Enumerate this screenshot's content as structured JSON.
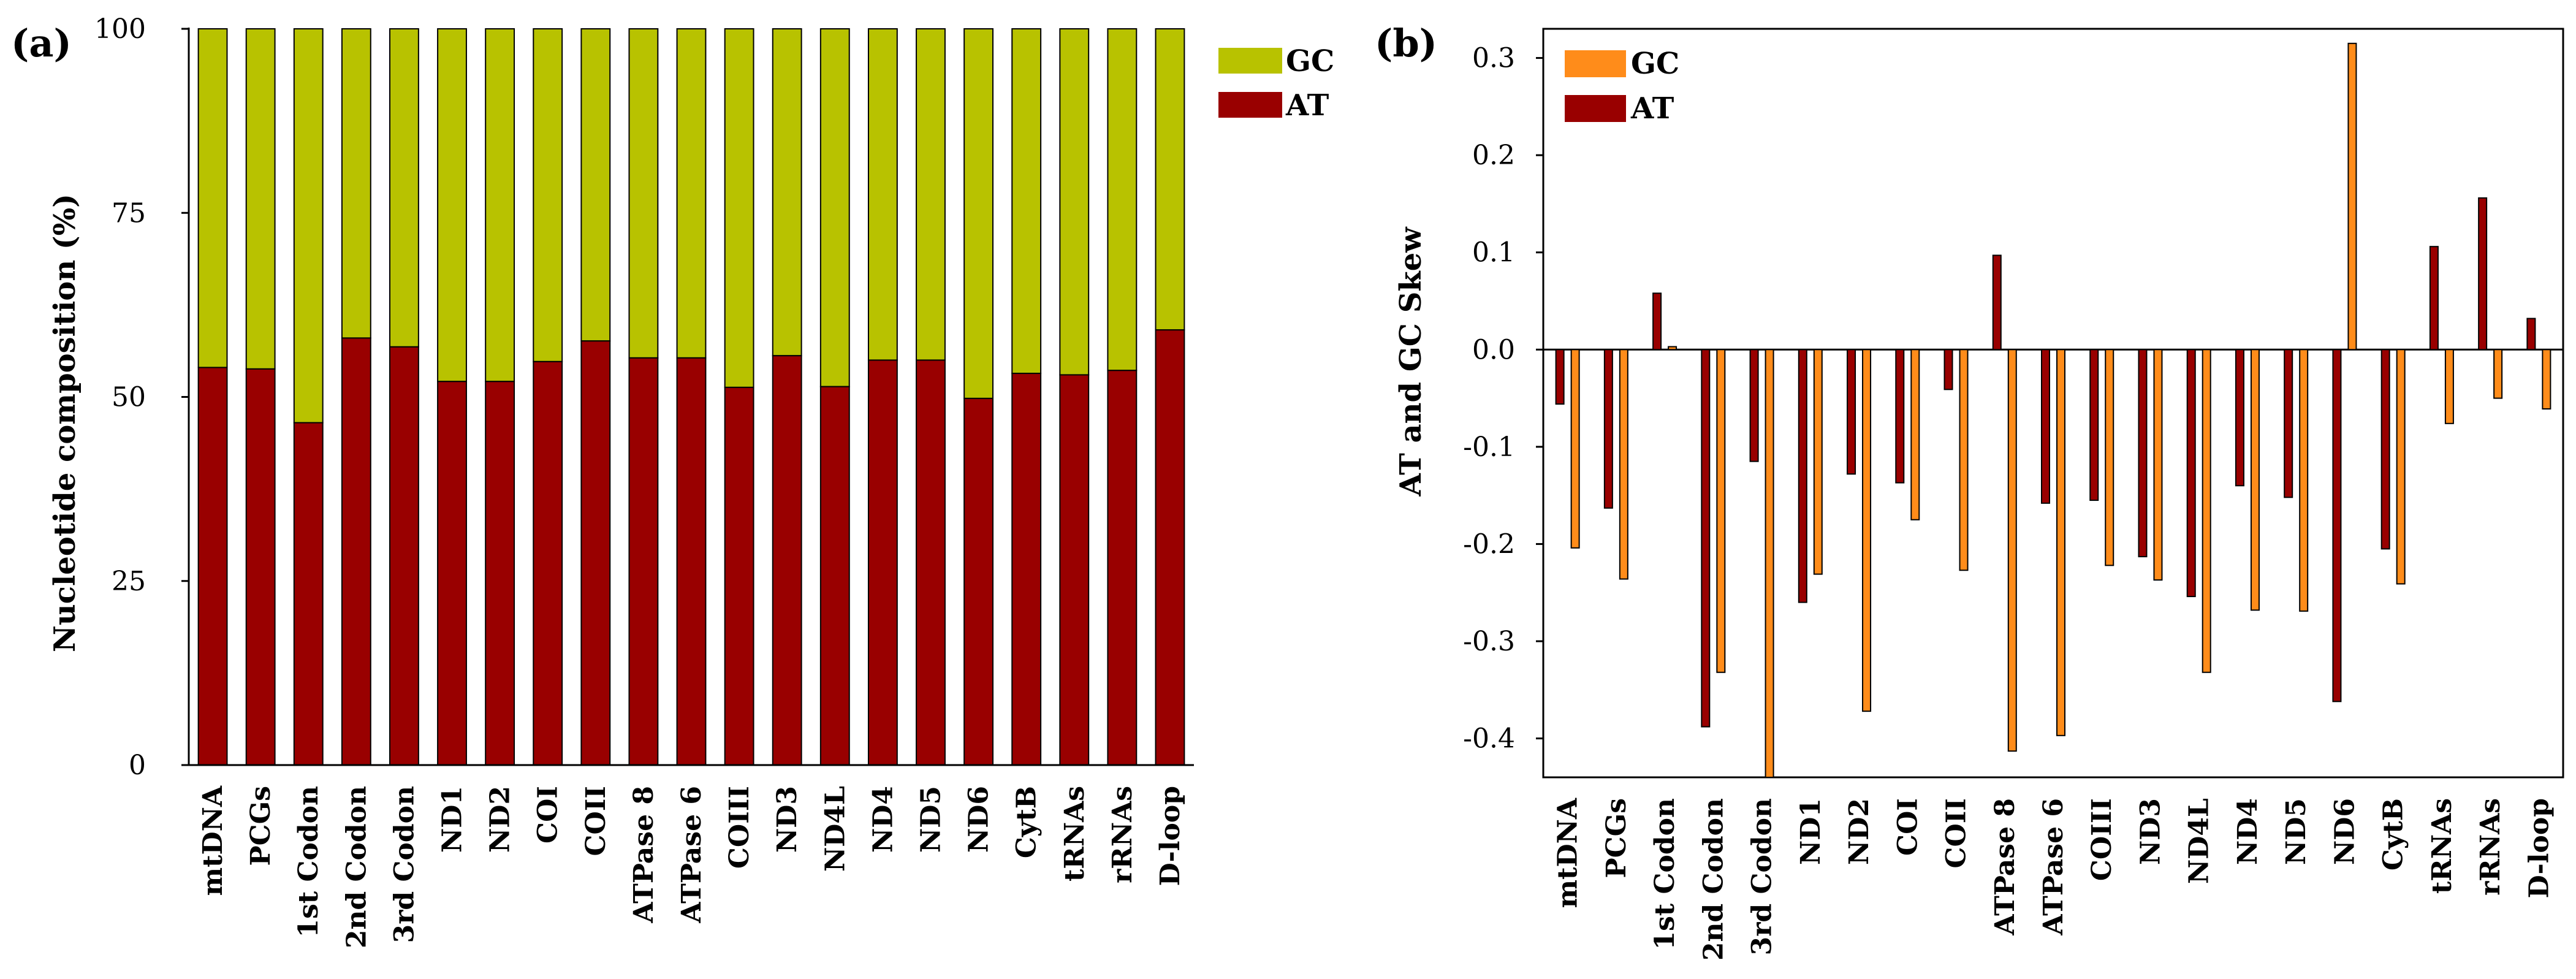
{
  "colors": {
    "gc_a": "#b8c200",
    "at_a": "#990000",
    "gc_b": "#ff8c1a",
    "at_b": "#990000"
  },
  "chart_data": [
    {
      "type": "bar",
      "stacked": true,
      "panel_label": "(a)",
      "ylabel": "Nucleotide composition (%)",
      "ylim": [
        0,
        100
      ],
      "yticks": [
        "0",
        "25",
        "50",
        "75",
        "100"
      ],
      "legend": [
        "GC",
        "AT"
      ],
      "legend_position": "top-right",
      "categories": [
        "mtDNA",
        "PCGs",
        "1st Codon",
        "2nd Codon",
        "3rd Codon",
        "ND1",
        "ND2",
        "COI",
        "COII",
        "ATPase 8",
        "ATPase 6",
        "COIII",
        "ND3",
        "ND4L",
        "ND4",
        "ND5",
        "ND6",
        "CytB",
        "tRNAs",
        "rRNAs",
        "D-loop"
      ],
      "series": [
        {
          "name": "AT",
          "values": [
            54.0,
            53.8,
            46.5,
            58.0,
            56.8,
            52.1,
            52.1,
            54.8,
            57.6,
            55.3,
            55.3,
            51.3,
            55.6,
            51.4,
            55.0,
            55.0,
            49.8,
            53.2,
            53.0,
            53.6,
            59.1
          ]
        },
        {
          "name": "GC",
          "values": [
            46.0,
            46.2,
            53.5,
            42.0,
            43.2,
            47.9,
            47.9,
            45.2,
            42.4,
            44.7,
            44.7,
            48.7,
            44.4,
            48.6,
            45.0,
            45.0,
            50.2,
            46.8,
            47.0,
            46.4,
            40.9
          ]
        }
      ]
    },
    {
      "type": "bar",
      "panel_label": "(b)",
      "ylabel": "AT and GC Skew",
      "ylim": [
        -0.44,
        0.33
      ],
      "yticks": [
        "-0.4",
        "-0.3",
        "-0.2",
        "-0.1",
        "0.0",
        "0.1",
        "0.2",
        "0.3"
      ],
      "legend": [
        "GC",
        "AT"
      ],
      "legend_position": "top-left",
      "categories": [
        "mtDNA",
        "PCGs",
        "1st Codon",
        "2nd Codon",
        "3rd Codon",
        "ND1",
        "ND2",
        "COI",
        "COII",
        "ATPase 8",
        "ATPase 6",
        "COIII",
        "ND3",
        "ND4L",
        "ND4",
        "ND5",
        "ND6",
        "CytB",
        "tRNAs",
        "rRNAs",
        "D-loop"
      ],
      "series": [
        {
          "name": "AT",
          "values": [
            -0.056,
            -0.163,
            0.058,
            -0.388,
            -0.115,
            -0.26,
            -0.128,
            -0.137,
            -0.041,
            0.097,
            -0.158,
            -0.155,
            -0.213,
            -0.254,
            -0.14,
            -0.152,
            -0.362,
            -0.205,
            0.106,
            0.156,
            0.032
          ]
        },
        {
          "name": "GC",
          "values": [
            -0.204,
            -0.236,
            0.003,
            -0.332,
            -0.44,
            -0.231,
            -0.372,
            -0.175,
            -0.227,
            -0.413,
            -0.397,
            -0.222,
            -0.237,
            -0.332,
            -0.268,
            -0.269,
            0.315,
            -0.241,
            -0.076,
            -0.05,
            -0.061
          ]
        }
      ]
    }
  ]
}
